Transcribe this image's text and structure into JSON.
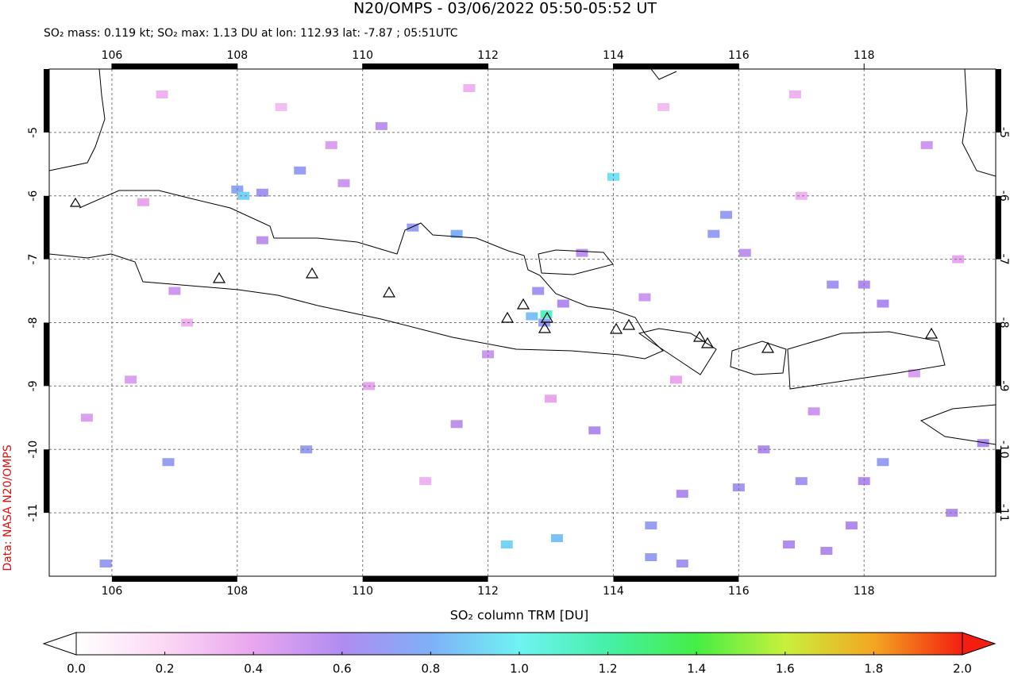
{
  "chart_data": {
    "type": "map",
    "title": "N20/OMPS - 03/06/2022 05:50-05:52 UT",
    "subtitle": "SO₂ mass: 0.119 kt; SO₂ max: 1.13 DU at lon: 112.93 lat: -7.87 ; 05:51UTC",
    "credit": "Data: NASA N20/OMPS",
    "colorbar_label": "SO₂ column TRM [DU]",
    "xlim": [
      105,
      120.1
    ],
    "ylim": [
      -12,
      -4
    ],
    "xticks": [
      106,
      108,
      110,
      112,
      114,
      116,
      118
    ],
    "yticks": [
      -5,
      -6,
      -7,
      -8,
      -9,
      -10,
      -11
    ],
    "grid": true,
    "clim": [
      0,
      2
    ],
    "cticks": [
      {
        "value": 0,
        "label": "0.0"
      },
      0.2,
      0.4,
      0.6,
      0.8,
      {
        "value": 1,
        "label": "1.0"
      },
      1.2,
      1.4,
      1.6,
      1.8,
      {
        "value": 2,
        "label": "2.0"
      }
    ],
    "colormap": [
      "#ffffff",
      "#fbd8f4",
      "#e9a6ef",
      "#b08cf0",
      "#7fb0f8",
      "#6ff3f3",
      "#45f0a8",
      "#45ee45",
      "#c8f03c",
      "#f4a622",
      "#f21f10"
    ],
    "x": [
      108.0,
      108.1,
      108.4,
      109.0,
      112.8,
      112.93,
      112.7,
      112.9,
      113.2,
      114.0,
      111.5,
      110.8,
      115.8,
      115.6,
      118.0,
      117.5,
      118.3,
      119.0,
      109.7,
      106.9,
      105.9,
      109.1,
      112.3,
      113.1,
      114.6,
      115.1,
      116.0,
      116.4,
      117.0,
      118.3,
      118.0,
      116.8,
      119.4,
      119.9,
      114.6,
      115.1,
      117.4,
      117.8,
      113.7,
      111.5,
      106.3,
      107.0,
      108.4,
      110.3,
      109.5,
      112.0,
      113.5,
      114.5,
      116.1,
      117.2,
      118.8,
      105.6,
      106.5,
      107.2,
      110.1,
      111.0,
      113.0,
      115.0,
      117.0,
      119.5,
      106.8,
      108.7,
      111.7,
      114.8,
      116.9
    ],
    "y": [
      -5.9,
      -6.0,
      -5.95,
      -5.6,
      -7.5,
      -7.87,
      -7.9,
      -8.0,
      -7.7,
      -5.7,
      -6.6,
      -6.5,
      -6.3,
      -6.6,
      -7.4,
      -7.4,
      -7.7,
      -5.2,
      -5.8,
      -10.2,
      -11.8,
      -10.0,
      -11.5,
      -11.4,
      -11.2,
      -10.7,
      -10.6,
      -10.0,
      -10.5,
      -10.2,
      -10.5,
      -11.5,
      -11.0,
      -9.9,
      -11.7,
      -11.8,
      -11.6,
      -11.2,
      -9.7,
      -9.6,
      -8.9,
      -7.5,
      -6.7,
      -4.9,
      -5.2,
      -8.5,
      -6.9,
      -7.6,
      -6.9,
      -9.4,
      -8.8,
      -9.5,
      -6.1,
      -8.0,
      -9.0,
      -10.5,
      -9.2,
      -8.9,
      -6.0,
      -7.0,
      -4.4,
      -4.6,
      -4.3,
      -4.6,
      -4.4
    ],
    "values": [
      0.75,
      0.9,
      0.65,
      0.7,
      0.65,
      1.13,
      0.85,
      0.7,
      0.6,
      0.95,
      0.8,
      0.7,
      0.7,
      0.7,
      0.6,
      0.65,
      0.6,
      0.5,
      0.5,
      0.7,
      0.7,
      0.7,
      0.9,
      0.85,
      0.7,
      0.6,
      0.65,
      0.6,
      0.65,
      0.7,
      0.6,
      0.6,
      0.6,
      0.6,
      0.7,
      0.65,
      0.6,
      0.6,
      0.6,
      0.55,
      0.45,
      0.5,
      0.55,
      0.55,
      0.45,
      0.5,
      0.55,
      0.5,
      0.55,
      0.5,
      0.45,
      0.45,
      0.4,
      0.35,
      0.4,
      0.35,
      0.4,
      0.4,
      0.35,
      0.4,
      0.35,
      0.3,
      0.35,
      0.3,
      0.35
    ]
  }
}
